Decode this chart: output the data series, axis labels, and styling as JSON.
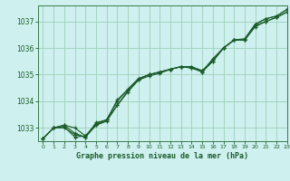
{
  "title": "Graphe pression niveau de la mer (hPa)",
  "bg_color": "#cef0ee",
  "grid_color": "#9ecfba",
  "line_color": "#1a5c2a",
  "spine_color": "#3a7a4a",
  "xlim": [
    -0.5,
    23
  ],
  "ylim": [
    1032.5,
    1037.6
  ],
  "xticks": [
    0,
    1,
    2,
    3,
    4,
    5,
    6,
    7,
    8,
    9,
    10,
    11,
    12,
    13,
    14,
    15,
    16,
    17,
    18,
    19,
    20,
    21,
    22,
    23
  ],
  "yticks": [
    1033,
    1034,
    1035,
    1036,
    1037
  ],
  "series": [
    [
      1032.6,
      1033.0,
      1033.1,
      1032.8,
      1032.65,
      1033.2,
      1033.3,
      1033.85,
      1034.4,
      1034.8,
      1035.0,
      1035.1,
      1035.2,
      1035.3,
      1035.25,
      1035.15,
      1035.5,
      1036.0,
      1036.3,
      1036.3,
      1036.9,
      1037.1,
      1037.2,
      1037.45
    ],
    [
      1032.6,
      1033.0,
      1033.1,
      1033.0,
      1032.7,
      1033.1,
      1033.3,
      1034.05,
      1034.45,
      1034.85,
      1035.0,
      1035.1,
      1035.2,
      1035.3,
      1035.3,
      1035.15,
      1035.55,
      1036.0,
      1036.3,
      1036.3,
      1036.8,
      1037.0,
      1037.15,
      1037.35
    ],
    [
      1032.6,
      1033.0,
      1033.0,
      1032.75,
      1032.65,
      1033.1,
      1033.25,
      1033.85,
      1034.35,
      1034.8,
      1034.95,
      1035.05,
      1035.2,
      1035.3,
      1035.25,
      1035.1,
      1035.5,
      1036.0,
      1036.3,
      1036.3,
      1036.85,
      1037.0,
      1037.15,
      1037.35
    ],
    [
      1032.6,
      1033.0,
      1033.05,
      1032.65,
      1032.7,
      1033.15,
      1033.3,
      1034.0,
      1034.45,
      1034.85,
      1035.0,
      1035.1,
      1035.2,
      1035.3,
      1035.3,
      1035.1,
      1035.6,
      1036.0,
      1036.3,
      1036.35,
      1036.9,
      1037.1,
      1037.2,
      1037.45
    ]
  ]
}
